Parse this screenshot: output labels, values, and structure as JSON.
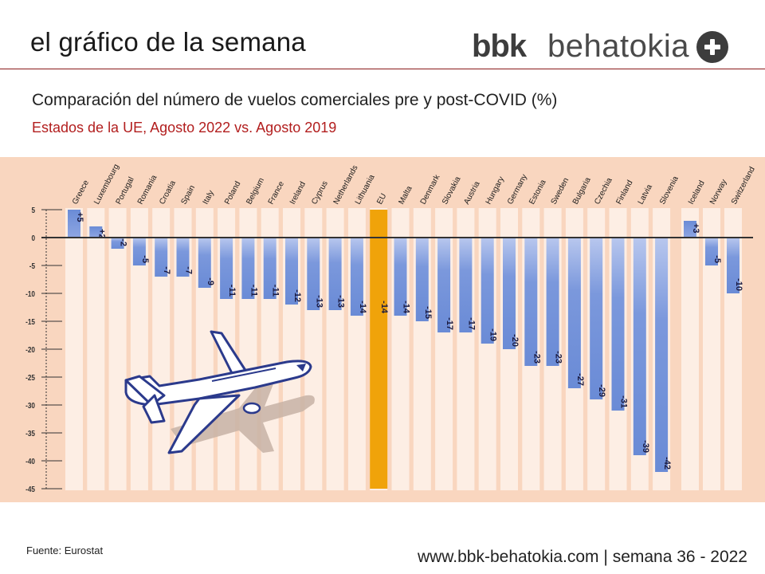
{
  "header": {
    "slide_title": "el gráfico de la semana",
    "logo_bold": "bbk",
    "logo_light": "behatokia"
  },
  "subtitle": "Comparación del número de vuelos comerciales pre y post-COVID (%)",
  "subsubtitle": "Estados de la UE, Agosto 2022 vs. Agosto 2019",
  "chart_data": {
    "type": "bar",
    "categories": [
      "Greece",
      "Luxembourg",
      "Portugal",
      "Romania",
      "Croatia",
      "Spain",
      "Italy",
      "Poland",
      "Belgium",
      "France",
      "Ireland",
      "Cyprus",
      "Netherlands",
      "Lithuania",
      "EU",
      "Malta",
      "Denmark",
      "Slovakia",
      "Austria",
      "Hungary",
      "Germany",
      "Estonia",
      "Sweden",
      "Bulgaria",
      "Czechia",
      "Finland",
      "Latvia",
      "Slovenia",
      "Iceland",
      "Norway",
      "Switzerland"
    ],
    "values": [
      5,
      2,
      -2,
      -5,
      -7,
      -7,
      -9,
      -11,
      -11,
      -11,
      -12,
      -13,
      -13,
      -14,
      -14,
      -14,
      -15,
      -17,
      -17,
      -19,
      -20,
      -23,
      -23,
      -27,
      -29,
      -31,
      -39,
      -42,
      3,
      -5,
      -10
    ],
    "value_labels": [
      "+5",
      "+2",
      "-2",
      "-5",
      "-7",
      "-7",
      "-9",
      "-11",
      "-11",
      "-11",
      "-12",
      "-13",
      "-13",
      "-14",
      "-14",
      "-14",
      "-15",
      "-17",
      "-17",
      "-19",
      "-20",
      "-23",
      "-23",
      "-27",
      "-29",
      "-31",
      "-39",
      "-42",
      "+3",
      "-5",
      "-10"
    ],
    "highlight": "EU",
    "ylim": [
      -45,
      5
    ],
    "yticks": [
      5,
      0,
      -5,
      -10,
      -15,
      -20,
      -25,
      -30,
      -35,
      -40,
      -45
    ],
    "grid": false,
    "colors": {
      "bar": "#6f8fd6",
      "bar_light": "#aebfea",
      "highlight": "#f0a30a",
      "background": "#f9d6bf",
      "column_stripe": "#fdeee4",
      "axis": "#333333"
    }
  },
  "footer": {
    "source": "Fuente: Eurostat",
    "site": "www.bbk-behatokia.com",
    "separator": "|",
    "week": "semana 36 - 2022"
  }
}
